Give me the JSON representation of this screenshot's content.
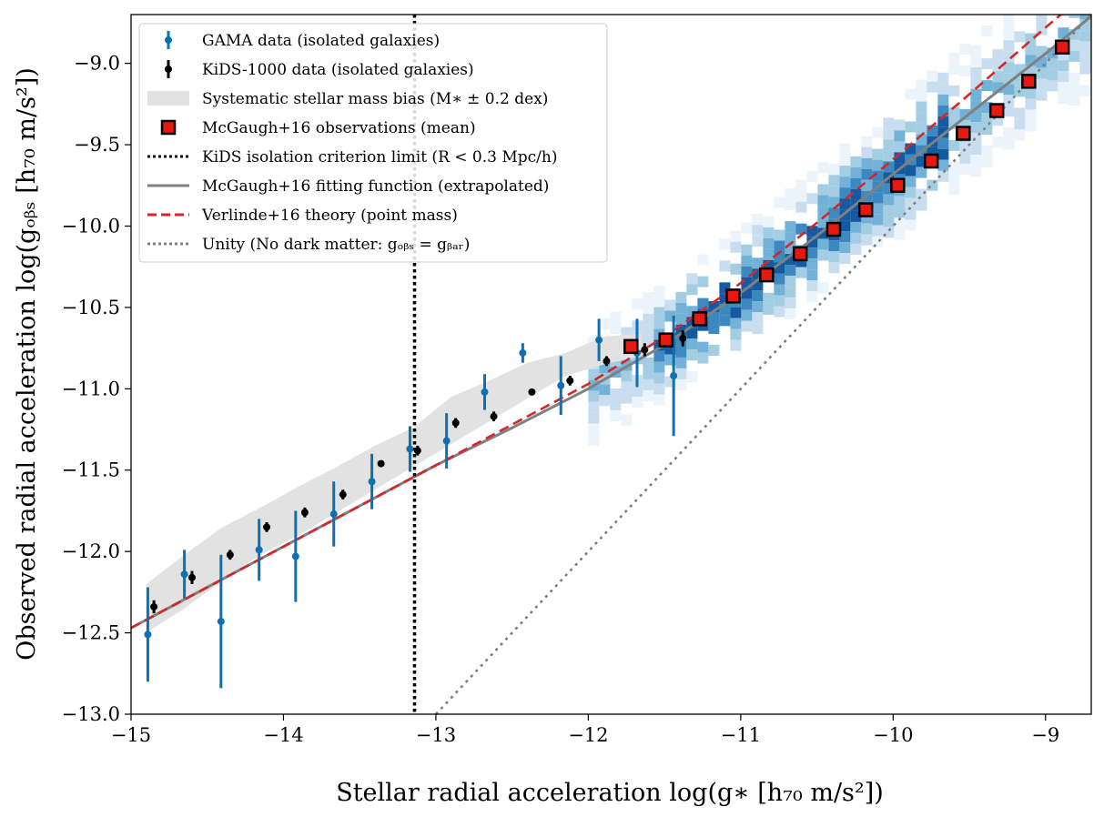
{
  "chart_data": {
    "type": "scatter",
    "xlabel": "Stellar radial acceleration log(g∗ [h₇₀ m/s²])",
    "ylabel": "Observed radial acceleration log(gₒᵦₛ [h₇₀ m/s²])",
    "xlim": [
      -15,
      -8.7
    ],
    "ylim": [
      -13,
      -8.7
    ],
    "x_ticks": [
      -15,
      -14,
      -13,
      -12,
      -11,
      -10,
      -9
    ],
    "x_tick_labels": [
      "−15",
      "−14",
      "−13",
      "−12",
      "−11",
      "−10",
      "−9"
    ],
    "y_ticks": [
      -13.0,
      -12.5,
      -12.0,
      -11.5,
      -11.0,
      -10.5,
      -10.0,
      -9.5,
      -9.0
    ],
    "y_tick_labels": [
      "−13.0",
      "−12.5",
      "−12.0",
      "−11.5",
      "−11.0",
      "−10.5",
      "−10.0",
      "−9.5",
      "−9.0"
    ],
    "legend_position": "upper-left",
    "legend": [
      {
        "label": "GAMA data (isolated galaxies)",
        "marker": "errorbar-dot",
        "color": "#0a72b2"
      },
      {
        "label": "KiDS-1000 data (isolated galaxies)",
        "marker": "errorbar-dot",
        "color": "#000000"
      },
      {
        "label": "Systematic stellar mass bias (M∗ ± 0.2 dex)",
        "marker": "band",
        "color": "#e2e2e2"
      },
      {
        "label": "McGaugh+16 observations (mean)",
        "marker": "square",
        "color": "#e8170f"
      },
      {
        "label": "KiDS isolation criterion limit (R < 0.3 Mpc/h)",
        "marker": "dotted-line",
        "color": "#000000"
      },
      {
        "label": "McGaugh+16 fitting function (extrapolated)",
        "marker": "solid-line",
        "color": "#808080"
      },
      {
        "label": "Verlinde+16 theory (point mass)",
        "marker": "dashed-line",
        "color": "#d62728"
      },
      {
        "label": "Unity (No dark matter: gₒᵦₛ = gᵦₐᵣ)",
        "marker": "dotted-line",
        "color": "#7f7f7f"
      }
    ],
    "series": [
      {
        "name": "GAMA data (isolated galaxies)",
        "type": "errorbar",
        "color": "#0a72b2",
        "x": [
          -14.89,
          -14.65,
          -14.41,
          -14.16,
          -13.92,
          -13.67,
          -13.42,
          -13.17,
          -12.93,
          -12.68,
          -12.43,
          -12.18,
          -11.93,
          -11.68,
          -11.44
        ],
        "y": [
          -12.51,
          -12.14,
          -12.43,
          -11.99,
          -12.03,
          -11.77,
          -11.57,
          -11.37,
          -11.32,
          -11.02,
          -10.78,
          -10.98,
          -10.7,
          -10.78,
          -10.92
        ],
        "yerr": [
          0.29,
          0.15,
          0.41,
          0.19,
          0.28,
          0.2,
          0.17,
          0.14,
          0.17,
          0.11,
          0.06,
          0.18,
          0.13,
          0.21,
          0.37
        ]
      },
      {
        "name": "KiDS-1000 data (isolated galaxies)",
        "type": "errorbar",
        "color": "#000000",
        "x": [
          -14.85,
          -14.6,
          -14.35,
          -14.11,
          -13.86,
          -13.61,
          -13.36,
          -13.12,
          -12.87,
          -12.62,
          -12.37,
          -12.12,
          -11.88,
          -11.63,
          -11.38
        ],
        "y": [
          -12.34,
          -12.16,
          -12.02,
          -11.85,
          -11.76,
          -11.65,
          -11.46,
          -11.38,
          -11.21,
          -11.17,
          -11.02,
          -10.95,
          -10.83,
          -10.76,
          -10.69
        ],
        "yerr": [
          0.04,
          0.04,
          0.03,
          0.03,
          0.03,
          0.03,
          0.02,
          0.03,
          0.03,
          0.03,
          0.02,
          0.03,
          0.03,
          0.04,
          0.05
        ]
      },
      {
        "name": "McGaugh+16 observations (mean)",
        "type": "square",
        "color": "#e8170f",
        "x": [
          -11.72,
          -11.49,
          -11.27,
          -11.05,
          -10.83,
          -10.61,
          -10.39,
          -10.18,
          -9.97,
          -9.75,
          -9.54,
          -9.32,
          -9.11,
          -8.89
        ],
        "y": [
          -10.74,
          -10.7,
          -10.57,
          -10.43,
          -10.3,
          -10.17,
          -10.02,
          -9.9,
          -9.75,
          -9.6,
          -9.43,
          -9.29,
          -9.11,
          -8.9
        ]
      },
      {
        "name": "McGaugh+16 fitting function (extrapolated)",
        "type": "line",
        "style": "solid",
        "color": "#808080",
        "x": [
          -15,
          -14.5,
          -14,
          -13.5,
          -13,
          -12.5,
          -12,
          -11.5,
          -11,
          -10.5,
          -10,
          -9.5,
          -9,
          -8.7
        ],
        "y": [
          -12.47,
          -12.22,
          -11.97,
          -11.72,
          -11.47,
          -11.24,
          -11.0,
          -10.73,
          -10.41,
          -10.06,
          -9.68,
          -9.31,
          -8.94,
          -8.71
        ]
      },
      {
        "name": "Verlinde+16 theory (point mass)",
        "type": "line",
        "style": "dashed",
        "color": "#d62728",
        "x": [
          -15,
          -14.5,
          -14,
          -13.5,
          -13,
          -12.5,
          -12,
          -11.5,
          -11,
          -10.5,
          -10,
          -9.5,
          -9,
          -8.7
        ],
        "y": [
          -12.47,
          -12.22,
          -11.97,
          -11.72,
          -11.47,
          -11.22,
          -10.97,
          -10.68,
          -10.35,
          -9.98,
          -9.59,
          -9.19,
          -8.78,
          -8.54
        ]
      },
      {
        "name": "Unity (No dark matter: gₒᵦₛ = gᵦₐᵣ)",
        "type": "line",
        "style": "dotted",
        "color": "#7f7f7f",
        "x": [
          -13,
          -8.7
        ],
        "y": [
          -13,
          -8.7
        ]
      },
      {
        "name": "KiDS isolation criterion limit (R < 0.3 Mpc/h)",
        "type": "vline",
        "style": "dotted",
        "color": "#000000",
        "x": -13.14
      }
    ],
    "band": {
      "name": "Systematic stellar mass bias (M∗ ± 0.2 dex)",
      "color": "#e2e2e2",
      "x": [
        -14.9,
        -14.65,
        -14.4,
        -14.15,
        -13.9,
        -13.65,
        -13.4,
        -13.15,
        -12.9,
        -12.65,
        -12.4,
        -12.15,
        -11.9,
        -11.65
      ],
      "lower": [
        -12.5,
        -12.35,
        -12.18,
        -12.02,
        -11.9,
        -11.76,
        -11.62,
        -11.48,
        -11.34,
        -11.2,
        -11.06,
        -10.92,
        -10.85,
        -10.8
      ],
      "upper": [
        -12.2,
        -12.02,
        -11.85,
        -11.73,
        -11.6,
        -11.48,
        -11.35,
        -11.24,
        -11.05,
        -10.95,
        -10.84,
        -10.78,
        -10.68,
        -10.66
      ]
    },
    "heatmap_colorscale": [
      "#eaf2fb",
      "#c6dbef",
      "#9ecae1",
      "#6baed6",
      "#3182bd",
      "#08519c"
    ]
  }
}
